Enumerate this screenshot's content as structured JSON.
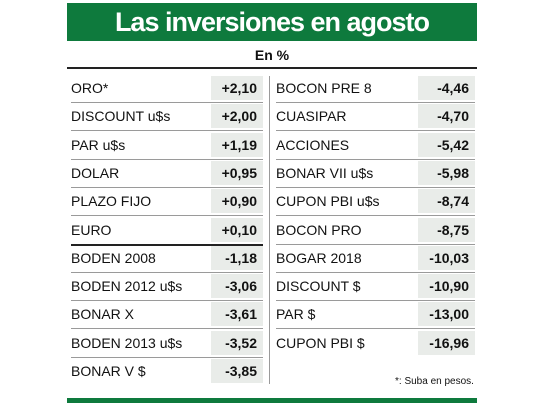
{
  "title": "Las inversiones en agosto",
  "subtitle": "En %",
  "footnote": "*: Suba en pesos.",
  "colors": {
    "accent": "#0e7a3d",
    "value_bg": "#e9ece9"
  },
  "chart_data": {
    "type": "table",
    "title": "Las inversiones en agosto",
    "unit": "En %",
    "left_column": [
      {
        "name": "ORO*",
        "value": "+2,10"
      },
      {
        "name": "DISCOUNT u$s",
        "value": "+2,00"
      },
      {
        "name": "PAR u$s",
        "value": "+1,19"
      },
      {
        "name": "DOLAR",
        "value": "+0,95"
      },
      {
        "name": "PLAZO FIJO",
        "value": "+0,90"
      },
      {
        "name": "EURO",
        "value": "+0,10"
      },
      {
        "name": "BODEN 2008",
        "value": "-1,18"
      },
      {
        "name": "BODEN 2012 u$s",
        "value": "-3,06"
      },
      {
        "name": "BONAR X",
        "value": "-3,61"
      },
      {
        "name": "BODEN 2013 u$s",
        "value": "-3,52"
      },
      {
        "name": "BONAR V $",
        "value": "-3,85"
      }
    ],
    "right_column": [
      {
        "name": "BOCON PRE 8",
        "value": "-4,46"
      },
      {
        "name": "CUASIPAR",
        "value": "-4,70"
      },
      {
        "name": "ACCIONES",
        "value": "-5,42"
      },
      {
        "name": "BONAR VII u$s",
        "value": "-5,98"
      },
      {
        "name": "CUPON PBI u$s",
        "value": "-8,74"
      },
      {
        "name": "BOCON PRO",
        "value": "-8,75"
      },
      {
        "name": "BOGAR 2018",
        "value": "-10,03"
      },
      {
        "name": "DISCOUNT $",
        "value": "-10,90"
      },
      {
        "name": "PAR $",
        "value": "-13,00"
      },
      {
        "name": "CUPON PBI $",
        "value": "-16,96"
      }
    ]
  }
}
